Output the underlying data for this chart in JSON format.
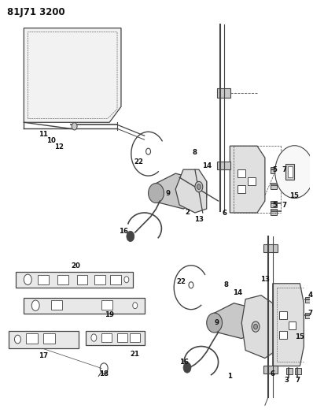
{
  "title": "81J71 3200",
  "bg_color": "#ffffff",
  "title_fontsize": 8.5,
  "title_fontweight": "bold",
  "fig_width": 3.98,
  "fig_height": 5.33,
  "dpi": 100,
  "gray_light": "#c8c8c8",
  "gray_mid": "#999999",
  "gray_dark": "#444444",
  "black": "#111111"
}
